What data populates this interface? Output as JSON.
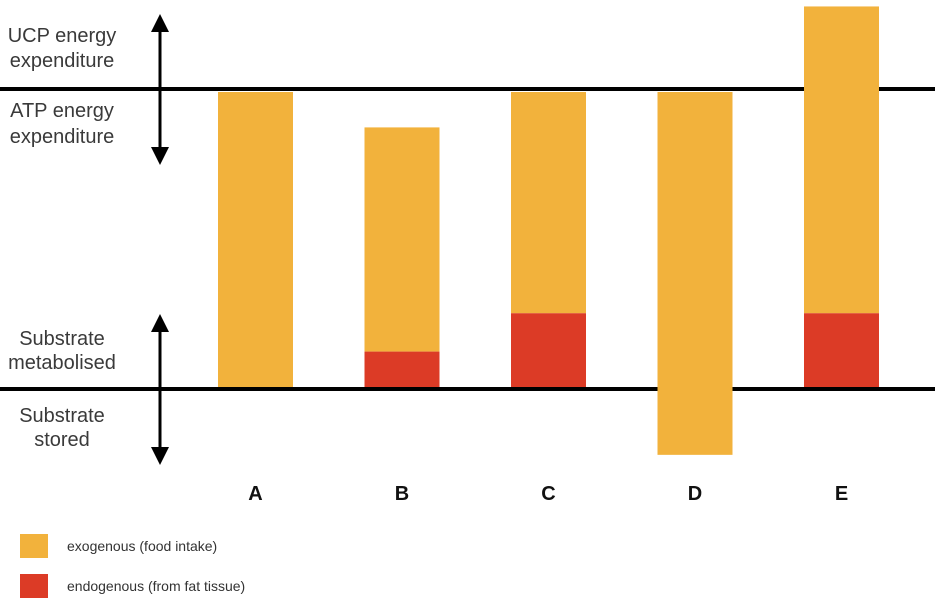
{
  "labels": {
    "ucp_line1": "UCP energy",
    "ucp_line2": "expenditure",
    "atp_line1": "ATP energy",
    "atp_line2": "expenditure",
    "metab_line1": "Substrate",
    "metab_line2": "metabolised",
    "stored_line1": "Substrate",
    "stored_line2": "stored"
  },
  "legend": [
    {
      "label": "exogenous (food intake)",
      "color": "#F2B23C"
    },
    {
      "label": "endogenous (from fat tissue)",
      "color": "#DC3B26"
    }
  ],
  "colors": {
    "exogenous": "#F2B23C",
    "endogenous": "#DC3B26",
    "line": "#000000"
  },
  "chart_data": {
    "type": "bar",
    "categories": [
      "A",
      "B",
      "C",
      "D",
      "E"
    ],
    "units": "relative (0 = storage/metabolism threshold, 1 = ATP/UCP threshold)",
    "series": [
      {
        "name": "exogenous (food intake)",
        "bottoms": [
          0,
          0.12,
          0.25,
          -0.23,
          0.25
        ],
        "tops": [
          1.0,
          0.88,
          1.0,
          1.0,
          1.29
        ]
      },
      {
        "name": "endogenous (from fat tissue)",
        "bottoms": [
          0,
          0,
          0,
          0,
          0
        ],
        "tops": [
          0,
          0.12,
          0.25,
          0,
          0.25
        ]
      }
    ]
  }
}
